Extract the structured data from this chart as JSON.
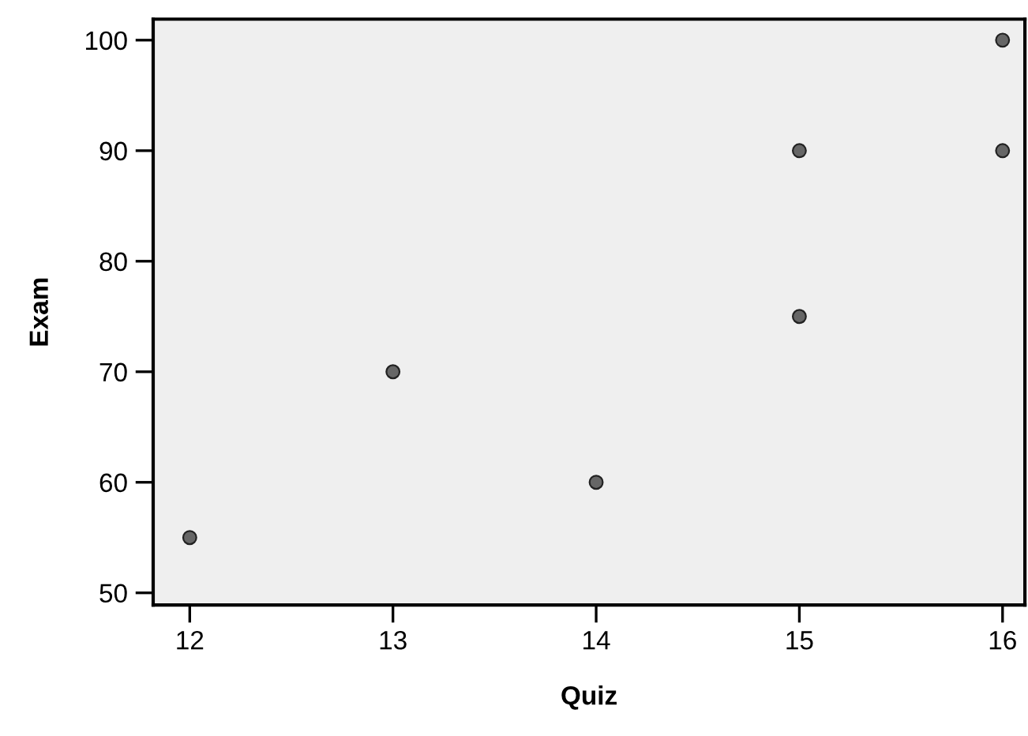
{
  "chart_data": {
    "type": "scatter",
    "xlabel": "Quiz",
    "ylabel": "Exam",
    "x": [
      12,
      13,
      14,
      15,
      15,
      16,
      16
    ],
    "values": [
      55,
      70,
      60,
      75,
      90,
      90,
      100
    ],
    "color": "#666666",
    "marker": "circle",
    "xlim": [
      11.82,
      16.11
    ],
    "ylim": [
      48.9,
      101.9
    ],
    "xticks": [
      12,
      13,
      14,
      15,
      16
    ],
    "yticks": [
      50,
      60,
      70,
      80,
      90,
      100
    ],
    "grid": false,
    "legend": false
  }
}
